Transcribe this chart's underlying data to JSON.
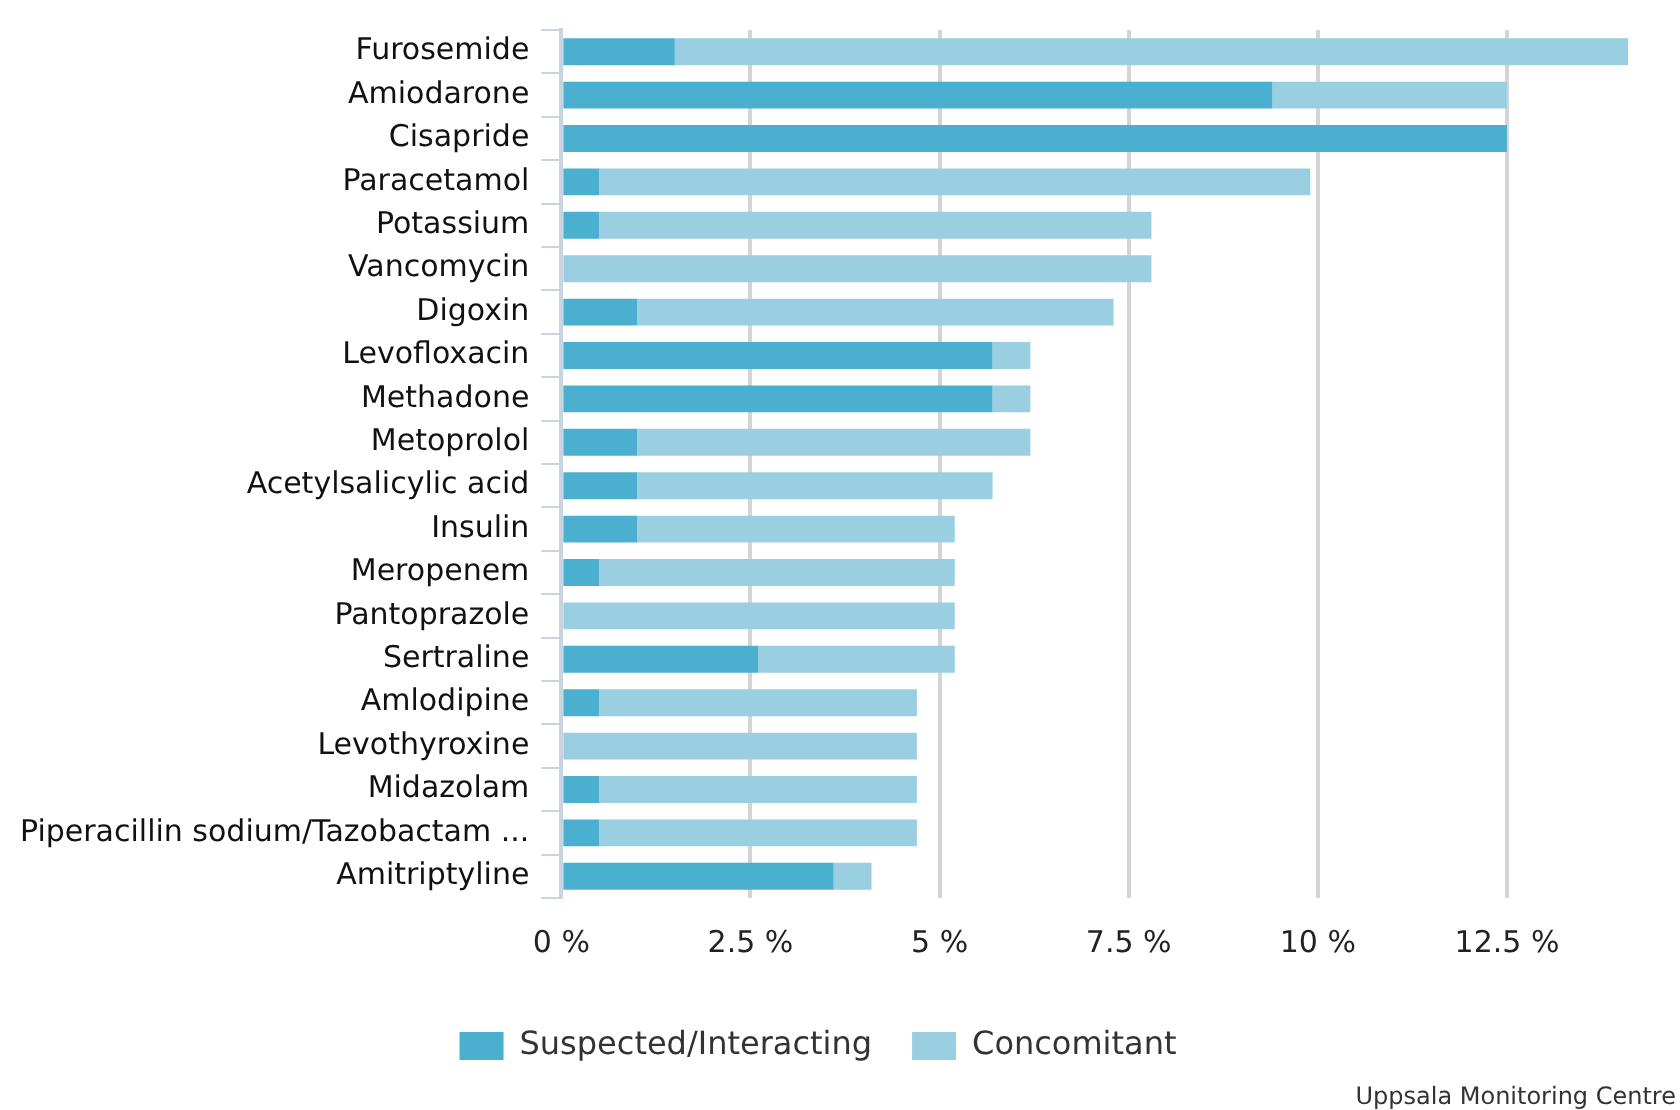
{
  "chart_data": {
    "type": "bar",
    "orientation": "horizontal",
    "stacked": true,
    "categories": [
      "Furosemide",
      "Amiodarone",
      "Cisapride",
      "Paracetamol",
      "Potassium",
      "Vancomycin",
      "Digoxin",
      "Levofloxacin",
      "Methadone",
      "Metoprolol",
      "Acetylsalicylic acid",
      "Insulin",
      "Meropenem",
      "Pantoprazole",
      "Sertraline",
      "Amlodipine",
      "Levothyroxine",
      "Midazolam",
      "Piperacillin sodium/Tazobactam ...",
      "Amitriptyline"
    ],
    "series": [
      {
        "name": "Suspected/Interacting",
        "color": "#4bafcf",
        "values": [
          1.5,
          9.4,
          12.5,
          0.5,
          0.5,
          0,
          1.0,
          5.7,
          5.7,
          1.0,
          1.0,
          1.0,
          0.5,
          0,
          2.6,
          0.5,
          0,
          0.5,
          0.5,
          3.6
        ]
      },
      {
        "name": "Concomitant",
        "color": "#99cfe1",
        "values": [
          12.6,
          3.1,
          0,
          9.4,
          7.3,
          7.8,
          6.3,
          0.5,
          0.5,
          5.2,
          4.7,
          4.2,
          4.7,
          5.2,
          2.6,
          4.2,
          4.7,
          4.2,
          4.2,
          0.5
        ]
      }
    ],
    "xlim": [
      0,
      14.1
    ],
    "xticks": [
      {
        "value": 0,
        "label": "0 %"
      },
      {
        "value": 2.5,
        "label": "2.5 %"
      },
      {
        "value": 5,
        "label": "5 %"
      },
      {
        "value": 7.5,
        "label": "7.5 %"
      },
      {
        "value": 10,
        "label": "10 %"
      },
      {
        "value": 12.5,
        "label": "12.5 %"
      }
    ],
    "grid": "x",
    "legend": "bottom",
    "annotations": [
      "Uppsala Monitoring Centre"
    ]
  }
}
